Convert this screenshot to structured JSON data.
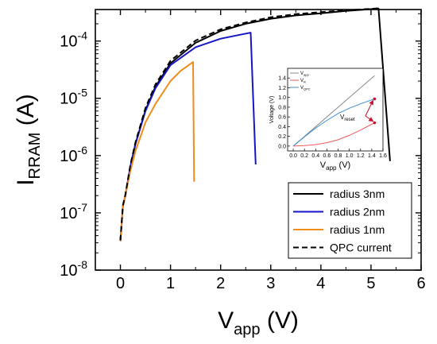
{
  "chart_data": [
    {
      "type": "line",
      "title": "",
      "xlabel": "V",
      "xlabel_sub": "app",
      "xlabel_unit": " (V)",
      "ylabel": "I",
      "ylabel_sub": "RRAM",
      "ylabel_unit": " (A)",
      "xlim": [
        -0.5,
        6
      ],
      "ylim_log10": [
        -8,
        -3.45
      ],
      "yscale": "log",
      "x_ticks": [
        0,
        1,
        2,
        3,
        4,
        5,
        6
      ],
      "x_tick_labels": [
        "0",
        "1",
        "2",
        "3",
        "4",
        "5",
        "6"
      ],
      "y_ticks_log10": [
        -8,
        -7,
        -6,
        -5,
        -4
      ],
      "y_tick_base": "10",
      "y_tick_exponents": [
        "-8",
        "-7",
        "-6",
        "-5",
        "-4"
      ],
      "legend_position": "bottom-right",
      "series": [
        {
          "name": "radius 3nm",
          "color": "#000000",
          "dash": "",
          "x": [
            0,
            0.05,
            0.1,
            0.2,
            0.3,
            0.5,
            0.7,
            1.0,
            1.5,
            2.0,
            2.5,
            3.0,
            3.5,
            4.0,
            4.5,
            5.0,
            5.15,
            5.38
          ],
          "y": [
            3.2e-08,
            1.3e-07,
            2e-07,
            6.5e-07,
            1.6e-06,
            6.2e-06,
            1.6e-05,
            4.1e-05,
            9.3e-05,
            0.00015,
            0.0002,
            0.000245,
            0.00028,
            0.000305,
            0.000335,
            0.00036,
            0.00037,
            8e-07
          ]
        },
        {
          "name": "radius 2nm",
          "color": "#1515c8",
          "dash": "",
          "x": [
            0,
            0.05,
            0.1,
            0.2,
            0.3,
            0.5,
            0.7,
            1.0,
            1.5,
            2.0,
            2.5,
            2.6,
            2.7
          ],
          "y": [
            3.2e-08,
            1.3e-07,
            2e-07,
            6.5e-07,
            1.6e-06,
            6e-06,
            1.5e-05,
            3.8e-05,
            7.8e-05,
            0.00011,
            0.000135,
            0.00014,
            7e-07
          ]
        },
        {
          "name": "radius 1nm",
          "color": "#ef8c1a",
          "dash": "",
          "x": [
            0,
            0.05,
            0.1,
            0.2,
            0.3,
            0.5,
            0.7,
            1.0,
            1.2,
            1.45,
            1.47
          ],
          "y": [
            3.2e-08,
            1.3e-07,
            2e-07,
            5.5e-07,
            1.2e-06,
            3.8e-06,
            8e-06,
            2e-05,
            3e-05,
            4.3e-05,
            3.5e-07
          ]
        },
        {
          "name": "QPC current",
          "color": "#000000",
          "dash": "7,4",
          "x": [
            0,
            0.05,
            0.1,
            0.2,
            0.3,
            0.5,
            0.7,
            1.0,
            1.5,
            2.0,
            2.5,
            3.0,
            3.5,
            4.0,
            4.5,
            5.0,
            5.2
          ],
          "y": [
            3.3e-08,
            1.35e-07,
            2.1e-07,
            7e-07,
            1.7e-06,
            6.8e-06,
            1.75e-05,
            4.5e-05,
            0.000102,
            0.00016,
            0.00021,
            0.00026,
            0.000295,
            0.00032,
            0.000345,
            0.000365,
            0.000375
          ]
        }
      ]
    },
    {
      "type": "line",
      "title": "",
      "xlabel": "V",
      "xlabel_sub": "app",
      "xlabel_unit": " (V)",
      "ylabel": "Voltage (V)",
      "xlim": [
        -0.1,
        1.6
      ],
      "ylim": [
        -0.1,
        1.6
      ],
      "x_ticks": [
        0.0,
        0.2,
        0.4,
        0.6,
        0.8,
        1.0,
        1.2,
        1.4,
        1.6
      ],
      "x_tick_labels": [
        "0.0",
        "0.2",
        "0.4",
        "0.6",
        "0.8",
        "1.0",
        "1.2",
        "1.4",
        "1.6"
      ],
      "y_ticks": [
        0.0,
        0.2,
        0.4,
        0.6,
        0.8,
        1.0,
        1.2,
        1.4
      ],
      "y_tick_labels": [
        "0.0",
        "0.2",
        "0.4",
        "0.6",
        "0.8",
        "1.0",
        "1.2",
        "1.4"
      ],
      "legend_position": "top-left",
      "annotation": {
        "text": "V",
        "sub": "reset"
      },
      "series": [
        {
          "name": "V",
          "name_sub": "app",
          "color": "#888888",
          "x": [
            0,
            1.45
          ],
          "y": [
            0,
            1.45
          ]
        },
        {
          "name": "V",
          "name_sub": "R",
          "color": "#e85a5a",
          "x": [
            0,
            0.2,
            0.4,
            0.6,
            0.8,
            1.0,
            1.2,
            1.45
          ],
          "y": [
            0,
            0.01,
            0.03,
            0.07,
            0.13,
            0.22,
            0.33,
            0.48
          ]
        },
        {
          "name": "V",
          "name_sub": "QPC",
          "color": "#3d8fd6",
          "x": [
            0,
            0.2,
            0.4,
            0.6,
            0.8,
            1.0,
            1.2,
            1.45
          ],
          "y": [
            0,
            0.19,
            0.37,
            0.53,
            0.67,
            0.78,
            0.87,
            0.97
          ]
        }
      ],
      "markers": [
        {
          "x": 1.45,
          "y": 0.97,
          "color": "#c8102e"
        },
        {
          "x": 1.45,
          "y": 0.48,
          "color": "#c8102e"
        }
      ]
    }
  ]
}
